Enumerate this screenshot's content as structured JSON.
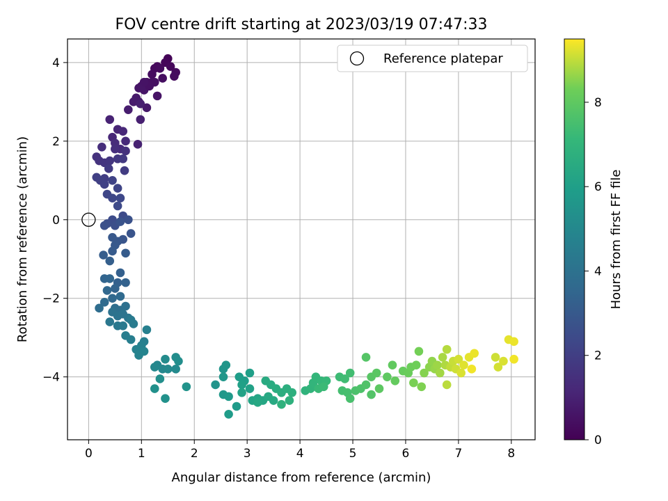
{
  "chart_data": {
    "type": "scatter",
    "title": "FOV centre drift starting at 2023/03/19 07:47:33",
    "xlabel": "Angular distance from reference (arcmin)",
    "ylabel": "Rotation from reference (arcmin)",
    "xlim": [
      -0.4,
      8.45
    ],
    "ylim": [
      -5.6,
      4.6
    ],
    "xticks": [
      0,
      1,
      2,
      3,
      4,
      5,
      6,
      7,
      8
    ],
    "yticks": [
      -4,
      -2,
      0,
      2,
      4
    ],
    "grid": true,
    "legend": {
      "placement": "top-right",
      "entries": [
        "Reference platepar"
      ]
    },
    "reference_point": {
      "x": 0,
      "y": 0,
      "label": "Reference platepar"
    },
    "colorbar": {
      "label": "Hours from first FF file",
      "colormap": "viridis",
      "range": [
        0,
        9.5
      ],
      "ticks": [
        0,
        2,
        4,
        6,
        8
      ]
    },
    "series": [
      {
        "points": [
          [
            1.5,
            4.1,
            0.1
          ],
          [
            1.45,
            4.0,
            0.15
          ],
          [
            1.3,
            3.9,
            0.2
          ],
          [
            1.25,
            3.85,
            0.25
          ],
          [
            1.35,
            3.85,
            0.3
          ],
          [
            1.2,
            3.7,
            0.35
          ],
          [
            1.1,
            3.5,
            0.4
          ],
          [
            1.0,
            3.4,
            0.45
          ],
          [
            1.25,
            3.5,
            0.5
          ],
          [
            1.3,
            3.15,
            0.55
          ],
          [
            1.05,
            3.3,
            0.6
          ],
          [
            0.95,
            3.0,
            0.65
          ],
          [
            1.1,
            2.85,
            0.7
          ],
          [
            0.9,
            3.1,
            0.75
          ],
          [
            1.65,
            3.75,
            0.3
          ],
          [
            1.62,
            3.65,
            0.35
          ],
          [
            1.55,
            3.9,
            0.2
          ],
          [
            1.4,
            3.6,
            0.4
          ],
          [
            1.2,
            3.5,
            0.45
          ],
          [
            1.15,
            3.4,
            0.5
          ],
          [
            1.05,
            3.5,
            0.55
          ],
          [
            0.95,
            3.35,
            0.6
          ],
          [
            0.85,
            3.0,
            0.8
          ],
          [
            0.75,
            2.8,
            0.85
          ],
          [
            0.98,
            2.95,
            0.9
          ],
          [
            0.98,
            2.55,
            0.95
          ],
          [
            0.93,
            1.92,
            1.0
          ],
          [
            0.4,
            2.55,
            1.05
          ],
          [
            0.55,
            2.3,
            1.1
          ],
          [
            0.45,
            2.1,
            1.15
          ],
          [
            0.65,
            2.25,
            1.2
          ],
          [
            0.7,
            2.0,
            1.25
          ],
          [
            0.6,
            1.8,
            1.3
          ],
          [
            0.5,
            1.95,
            1.35
          ],
          [
            0.25,
            1.85,
            1.4
          ],
          [
            0.5,
            1.8,
            1.45
          ],
          [
            0.7,
            1.75,
            1.5
          ],
          [
            0.15,
            1.6,
            1.55
          ],
          [
            0.2,
            1.5,
            1.6
          ],
          [
            0.3,
            1.45,
            1.65
          ],
          [
            0.4,
            1.5,
            1.7
          ],
          [
            0.55,
            1.55,
            1.75
          ],
          [
            0.65,
            1.55,
            1.8
          ],
          [
            0.38,
            1.3,
            1.85
          ],
          [
            0.68,
            1.25,
            1.9
          ],
          [
            0.3,
            1.05,
            1.95
          ],
          [
            0.15,
            1.08,
            2.0
          ],
          [
            0.22,
            1.0,
            2.05
          ],
          [
            0.3,
            0.9,
            2.1
          ],
          [
            0.45,
            1.0,
            2.15
          ],
          [
            0.55,
            0.8,
            2.2
          ],
          [
            0.35,
            0.65,
            2.25
          ],
          [
            0.45,
            0.55,
            2.3
          ],
          [
            0.6,
            0.55,
            2.35
          ],
          [
            0.55,
            0.35,
            2.4
          ],
          [
            0.65,
            0.1,
            2.45
          ],
          [
            0.45,
            0.0,
            2.5
          ],
          [
            0.35,
            -0.1,
            2.55
          ],
          [
            0.5,
            -0.15,
            2.6
          ],
          [
            0.3,
            -0.15,
            2.65
          ],
          [
            0.75,
            0.0,
            2.7
          ],
          [
            0.6,
            -0.05,
            2.75
          ],
          [
            0.8,
            -0.35,
            2.8
          ],
          [
            0.65,
            -0.5,
            2.85
          ],
          [
            0.55,
            -0.55,
            2.9
          ],
          [
            0.45,
            -0.45,
            2.95
          ],
          [
            0.5,
            -0.65,
            3.0
          ],
          [
            0.45,
            -0.8,
            3.05
          ],
          [
            0.7,
            -0.85,
            3.1
          ],
          [
            0.28,
            -0.9,
            3.15
          ],
          [
            0.4,
            -1.05,
            3.2
          ],
          [
            0.6,
            -1.35,
            3.25
          ],
          [
            0.55,
            -1.6,
            3.3
          ],
          [
            0.7,
            -1.6,
            3.35
          ],
          [
            0.5,
            -1.75,
            3.4
          ],
          [
            0.3,
            -1.5,
            3.45
          ],
          [
            0.4,
            -1.5,
            3.5
          ],
          [
            0.35,
            -1.8,
            3.55
          ],
          [
            0.45,
            -2.0,
            3.6
          ],
          [
            0.6,
            -1.95,
            3.65
          ],
          [
            0.3,
            -2.1,
            3.7
          ],
          [
            0.2,
            -2.25,
            3.8
          ],
          [
            0.5,
            -2.25,
            3.85
          ],
          [
            0.6,
            -2.3,
            3.9
          ],
          [
            0.7,
            -2.2,
            3.95
          ],
          [
            0.45,
            -2.35,
            4.0
          ],
          [
            0.55,
            -2.45,
            4.05
          ],
          [
            0.65,
            -2.4,
            4.1
          ],
          [
            0.75,
            -2.5,
            4.2
          ],
          [
            0.4,
            -2.6,
            4.25
          ],
          [
            0.55,
            -2.7,
            4.3
          ],
          [
            0.65,
            -2.7,
            4.35
          ],
          [
            0.8,
            -2.55,
            4.4
          ],
          [
            0.85,
            -2.65,
            4.45
          ],
          [
            0.7,
            -2.95,
            4.5
          ],
          [
            0.8,
            -3.05,
            4.55
          ],
          [
            1.05,
            -3.1,
            4.6
          ],
          [
            1.1,
            -2.8,
            4.65
          ],
          [
            1.0,
            -3.2,
            4.7
          ],
          [
            0.9,
            -3.3,
            4.75
          ],
          [
            0.95,
            -3.45,
            4.8
          ],
          [
            1.05,
            -3.35,
            4.85
          ],
          [
            1.3,
            -3.7,
            4.9
          ],
          [
            1.4,
            -3.8,
            4.95
          ],
          [
            1.25,
            -3.75,
            5.0
          ],
          [
            1.5,
            -3.8,
            5.05
          ],
          [
            1.65,
            -3.8,
            5.1
          ],
          [
            1.45,
            -3.55,
            5.15
          ],
          [
            1.65,
            -3.5,
            5.2
          ],
          [
            1.7,
            -3.6,
            5.25
          ],
          [
            1.35,
            -4.05,
            5.3
          ],
          [
            1.25,
            -4.3,
            5.35
          ],
          [
            1.45,
            -4.55,
            5.4
          ],
          [
            1.85,
            -4.25,
            5.45
          ],
          [
            2.4,
            -4.2,
            5.5
          ],
          [
            2.55,
            -3.8,
            5.55
          ],
          [
            2.6,
            -3.7,
            5.6
          ],
          [
            2.55,
            -4.0,
            5.65
          ],
          [
            2.55,
            -4.45,
            5.7
          ],
          [
            2.65,
            -4.5,
            5.75
          ],
          [
            2.8,
            -4.75,
            5.8
          ],
          [
            2.65,
            -4.95,
            5.85
          ],
          [
            2.85,
            -4.0,
            5.9
          ],
          [
            2.95,
            -4.1,
            5.95
          ],
          [
            3.05,
            -3.9,
            6.0
          ],
          [
            2.9,
            -4.2,
            6.05
          ],
          [
            3.05,
            -4.3,
            6.1
          ],
          [
            2.9,
            -4.4,
            6.15
          ],
          [
            3.1,
            -4.6,
            6.2
          ],
          [
            3.2,
            -4.55,
            6.25
          ],
          [
            3.3,
            -4.6,
            6.3
          ],
          [
            3.2,
            -4.65,
            6.35
          ],
          [
            3.4,
            -4.5,
            6.4
          ],
          [
            3.5,
            -4.6,
            6.45
          ],
          [
            3.35,
            -4.1,
            6.5
          ],
          [
            3.45,
            -4.2,
            6.55
          ],
          [
            3.55,
            -4.3,
            6.6
          ],
          [
            3.65,
            -4.4,
            6.65
          ],
          [
            3.75,
            -4.3,
            6.7
          ],
          [
            3.85,
            -4.4,
            6.75
          ],
          [
            3.8,
            -4.6,
            6.8
          ],
          [
            3.65,
            -4.7,
            6.85
          ],
          [
            4.1,
            -4.35,
            6.9
          ],
          [
            4.2,
            -4.3,
            6.95
          ],
          [
            4.25,
            -4.15,
            7.0
          ],
          [
            4.3,
            -4.0,
            7.05
          ],
          [
            4.4,
            -4.1,
            7.1
          ],
          [
            4.5,
            -4.1,
            7.15
          ],
          [
            4.35,
            -4.3,
            7.2
          ],
          [
            4.45,
            -4.25,
            7.25
          ],
          [
            4.75,
            -4.0,
            7.3
          ],
          [
            4.85,
            -4.05,
            7.35
          ],
          [
            4.95,
            -3.9,
            7.4
          ],
          [
            4.8,
            -4.35,
            7.45
          ],
          [
            4.9,
            -4.4,
            7.5
          ],
          [
            4.95,
            -4.55,
            7.55
          ],
          [
            5.05,
            -4.35,
            7.6
          ],
          [
            5.15,
            -4.3,
            7.65
          ],
          [
            5.25,
            -4.2,
            7.7
          ],
          [
            5.35,
            -4.45,
            7.75
          ],
          [
            5.25,
            -3.5,
            7.8
          ],
          [
            5.35,
            -4.0,
            7.85
          ],
          [
            5.45,
            -3.9,
            7.9
          ],
          [
            5.5,
            -4.3,
            7.95
          ],
          [
            5.65,
            -4.0,
            8.0
          ],
          [
            5.75,
            -3.7,
            8.05
          ],
          [
            5.8,
            -4.1,
            8.1
          ],
          [
            5.95,
            -3.85,
            8.15
          ],
          [
            6.05,
            -3.9,
            8.2
          ],
          [
            6.1,
            -3.75,
            8.25
          ],
          [
            6.2,
            -3.7,
            8.3
          ],
          [
            6.25,
            -3.35,
            8.35
          ],
          [
            6.15,
            -4.15,
            8.4
          ],
          [
            6.3,
            -4.25,
            8.45
          ],
          [
            6.35,
            -3.9,
            8.5
          ],
          [
            6.45,
            -3.75,
            8.55
          ],
          [
            6.5,
            -3.6,
            8.6
          ],
          [
            6.55,
            -3.8,
            8.65
          ],
          [
            6.6,
            -3.7,
            8.7
          ],
          [
            6.65,
            -3.9,
            8.75
          ],
          [
            6.7,
            -3.5,
            8.8
          ],
          [
            6.75,
            -3.7,
            8.85
          ],
          [
            6.78,
            -3.3,
            8.9
          ],
          [
            6.78,
            -4.2,
            8.95
          ],
          [
            6.85,
            -3.75,
            9.0
          ],
          [
            6.9,
            -3.6,
            9.05
          ],
          [
            6.95,
            -3.8,
            9.1
          ],
          [
            7.0,
            -3.55,
            9.15
          ],
          [
            7.05,
            -3.9,
            9.2
          ],
          [
            7.1,
            -3.7,
            9.25
          ],
          [
            7.2,
            -3.5,
            9.3
          ],
          [
            7.3,
            -3.4,
            9.35
          ],
          [
            7.25,
            -3.8,
            9.4
          ],
          [
            7.7,
            -3.5,
            9.1
          ],
          [
            7.75,
            -3.75,
            9.15
          ],
          [
            7.85,
            -3.6,
            9.2
          ],
          [
            7.95,
            -3.05,
            9.3
          ],
          [
            8.05,
            -3.1,
            9.35
          ],
          [
            8.05,
            -3.55,
            9.4
          ]
        ]
      }
    ]
  }
}
